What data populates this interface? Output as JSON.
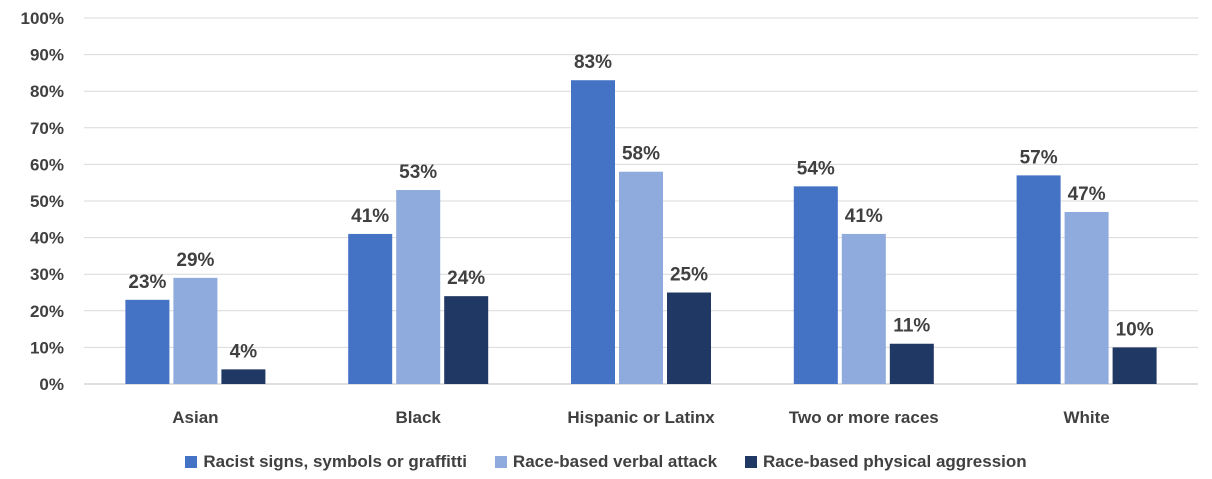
{
  "chart_data": {
    "type": "bar",
    "title": "",
    "xlabel": "",
    "ylabel": "",
    "ylim": [
      0,
      100
    ],
    "y_ticks": [
      "0%",
      "10%",
      "20%",
      "30%",
      "40%",
      "50%",
      "60%",
      "70%",
      "80%",
      "90%",
      "100%"
    ],
    "grid": true,
    "legend_position": "bottom",
    "categories": [
      "Asian",
      "Black",
      "Hispanic or Latinx",
      "Two or more races",
      "White"
    ],
    "series": [
      {
        "name": "Racist signs, symbols or graffitti",
        "color": "#4472c4",
        "values": [
          23,
          41,
          83,
          54,
          57
        ],
        "labels": [
          "23%",
          "41%",
          "83%",
          "54%",
          "57%"
        ]
      },
      {
        "name": "Race-based verbal attack",
        "color": "#8faadc",
        "values": [
          29,
          53,
          58,
          41,
          47
        ],
        "labels": [
          "29%",
          "53%",
          "58%",
          "41%",
          "47%"
        ]
      },
      {
        "name": "Race-based physical aggression",
        "color": "#203864",
        "values": [
          4,
          24,
          25,
          11,
          10
        ],
        "labels": [
          "4%",
          "24%",
          "25%",
          "11%",
          "10%"
        ]
      }
    ]
  }
}
